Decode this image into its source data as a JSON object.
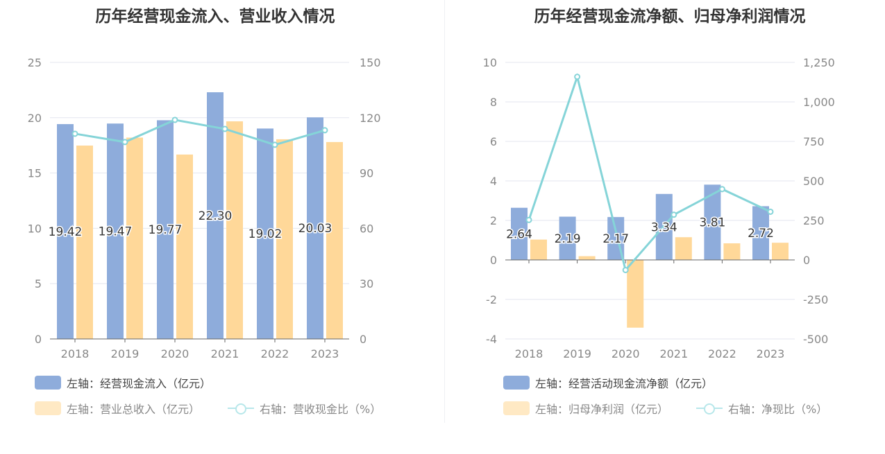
{
  "colors": {
    "bar1": "#8eacdb",
    "bar2": "#ffd899",
    "line": "#85d4d8",
    "bar2_legend": "#ffe9c4",
    "grid": "#e3e6ef",
    "axis_text": "#888888"
  },
  "chart_data": [
    {
      "type": "bar+line",
      "title": "历年经营现金流入、营业收入情况",
      "categories": [
        "2018",
        "2019",
        "2020",
        "2021",
        "2022",
        "2023"
      ],
      "left_axis": {
        "range": [
          0,
          25
        ],
        "ticks": [
          "0",
          "5",
          "10",
          "15",
          "20",
          "25"
        ]
      },
      "right_axis": {
        "range": [
          0,
          150
        ],
        "ticks": [
          "0",
          "30",
          "60",
          "90",
          "120",
          "150"
        ]
      },
      "grid": true,
      "series": [
        {
          "name": "左轴：经营现金流入（亿元）",
          "type": "bar",
          "axis": "left",
          "values": [
            19.42,
            19.47,
            19.77,
            22.3,
            19.02,
            20.03
          ],
          "labels": [
            "19.42",
            "19.47",
            "19.77",
            "22.30",
            "19.02",
            "20.03"
          ]
        },
        {
          "name": "左轴：营业总收入（亿元）",
          "type": "bar",
          "axis": "left",
          "values": [
            17.48,
            18.2,
            16.67,
            19.67,
            18.05,
            17.8
          ]
        },
        {
          "name": "右轴：营收现金比（%）",
          "type": "line",
          "axis": "right",
          "values": [
            111.3,
            106.8,
            118.8,
            113.9,
            105.3,
            113.2
          ]
        }
      ],
      "legend": "bottom"
    },
    {
      "type": "bar+line",
      "title": "历年经营现金流净额、归母净利润情况",
      "categories": [
        "2018",
        "2019",
        "2020",
        "2021",
        "2022",
        "2023"
      ],
      "left_axis": {
        "range": [
          -4,
          10
        ],
        "ticks": [
          "-4",
          "-2",
          "0",
          "2",
          "4",
          "6",
          "8",
          "10"
        ]
      },
      "right_axis": {
        "range": [
          -500,
          1250
        ],
        "ticks": [
          "-500",
          "-250",
          "0",
          "250",
          "500",
          "750",
          "1,000",
          "1,250"
        ]
      },
      "grid": true,
      "series": [
        {
          "name": "左轴：经营活动现金流净额（亿元）",
          "type": "bar",
          "axis": "left",
          "values": [
            2.64,
            2.19,
            2.17,
            3.34,
            3.81,
            2.72
          ],
          "labels": [
            "2.64",
            "2.19",
            "2.17",
            "3.34",
            "3.81",
            "2.72"
          ]
        },
        {
          "name": "左轴：归母净利润（亿元）",
          "type": "bar",
          "axis": "left",
          "values": [
            1.03,
            0.19,
            -3.43,
            1.15,
            0.84,
            0.87
          ]
        },
        {
          "name": "右轴：净现比（%）",
          "type": "line",
          "axis": "right",
          "values": [
            253,
            1159,
            -64,
            286,
            448,
            305
          ]
        }
      ],
      "legend": "bottom"
    }
  ]
}
